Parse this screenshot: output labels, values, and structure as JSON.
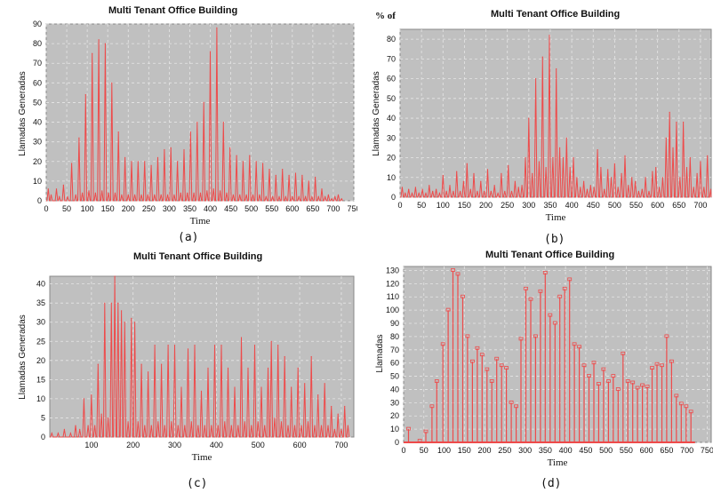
{
  "colors": {
    "plot_bg": "#c0c0c0",
    "grid": "#e6e6e6",
    "line": "#ee4a4a"
  },
  "chart_data": [
    {
      "type": "line",
      "title": "Multi Tenant Office Building",
      "caption": "(a)",
      "xlabel": "Time",
      "ylabel": "Llamadas Generadas",
      "xlim": [
        0,
        750
      ],
      "ylim": [
        0,
        90
      ],
      "xticks": [
        0,
        50,
        100,
        150,
        200,
        250,
        300,
        350,
        400,
        450,
        500,
        550,
        600,
        650,
        700,
        750
      ],
      "yticks": [
        0,
        10,
        20,
        30,
        40,
        50,
        60,
        70,
        80,
        90
      ],
      "peaks": [
        [
          5,
          6
        ],
        [
          12,
          3
        ],
        [
          25,
          6
        ],
        [
          32,
          2
        ],
        [
          42,
          8
        ],
        [
          52,
          2
        ],
        [
          62,
          19
        ],
        [
          72,
          3
        ],
        [
          80,
          32
        ],
        [
          88,
          4
        ],
        [
          96,
          54
        ],
        [
          104,
          5
        ],
        [
          112,
          75
        ],
        [
          120,
          4
        ],
        [
          128,
          82
        ],
        [
          136,
          5
        ],
        [
          144,
          80
        ],
        [
          152,
          4
        ],
        [
          160,
          60
        ],
        [
          168,
          4
        ],
        [
          176,
          35
        ],
        [
          184,
          3
        ],
        [
          192,
          22
        ],
        [
          200,
          3
        ],
        [
          208,
          20
        ],
        [
          216,
          3
        ],
        [
          224,
          20
        ],
        [
          232,
          3
        ],
        [
          240,
          20
        ],
        [
          248,
          3
        ],
        [
          256,
          18
        ],
        [
          264,
          3
        ],
        [
          272,
          22
        ],
        [
          280,
          3
        ],
        [
          288,
          26
        ],
        [
          296,
          3
        ],
        [
          304,
          27
        ],
        [
          312,
          3
        ],
        [
          320,
          20
        ],
        [
          328,
          4
        ],
        [
          336,
          26
        ],
        [
          344,
          4
        ],
        [
          352,
          35
        ],
        [
          360,
          4
        ],
        [
          368,
          40
        ],
        [
          376,
          4
        ],
        [
          384,
          50
        ],
        [
          392,
          5
        ],
        [
          400,
          76
        ],
        [
          408,
          6
        ],
        [
          416,
          88
        ],
        [
          424,
          5
        ],
        [
          432,
          40
        ],
        [
          440,
          4
        ],
        [
          448,
          27
        ],
        [
          456,
          3
        ],
        [
          464,
          23
        ],
        [
          472,
          3
        ],
        [
          480,
          20
        ],
        [
          488,
          3
        ],
        [
          496,
          23
        ],
        [
          504,
          3
        ],
        [
          512,
          20
        ],
        [
          520,
          3
        ],
        [
          528,
          19
        ],
        [
          536,
          2
        ],
        [
          544,
          16
        ],
        [
          552,
          2
        ],
        [
          560,
          13
        ],
        [
          568,
          2
        ],
        [
          576,
          16
        ],
        [
          584,
          2
        ],
        [
          592,
          13
        ],
        [
          600,
          2
        ],
        [
          608,
          14
        ],
        [
          616,
          2
        ],
        [
          624,
          13
        ],
        [
          632,
          2
        ],
        [
          640,
          10
        ],
        [
          648,
          2
        ],
        [
          656,
          12
        ],
        [
          664,
          2
        ],
        [
          672,
          6
        ],
        [
          680,
          2
        ],
        [
          688,
          3
        ],
        [
          696,
          1
        ],
        [
          704,
          2
        ],
        [
          712,
          3
        ],
        [
          720,
          1
        ]
      ]
    },
    {
      "type": "line",
      "title": "Multi Tenant Office Building",
      "corner_label": "% of",
      "caption": "(b)",
      "xlabel": "Time",
      "ylabel": "Llamadas Generadas",
      "xlim": [
        0,
        725
      ],
      "ylim": [
        0,
        85
      ],
      "xticks": [
        0,
        50,
        100,
        150,
        200,
        250,
        300,
        350,
        400,
        450,
        500,
        550,
        600,
        650,
        700
      ],
      "yticks": [
        0,
        10,
        20,
        30,
        40,
        50,
        60,
        70,
        80
      ],
      "peaks": [
        [
          5,
          5
        ],
        [
          12,
          2
        ],
        [
          20,
          4
        ],
        [
          28,
          2
        ],
        [
          36,
          5
        ],
        [
          44,
          2
        ],
        [
          52,
          4
        ],
        [
          60,
          2
        ],
        [
          68,
          6
        ],
        [
          76,
          3
        ],
        [
          84,
          4
        ],
        [
          92,
          2
        ],
        [
          100,
          11
        ],
        [
          108,
          3
        ],
        [
          116,
          6
        ],
        [
          124,
          3
        ],
        [
          132,
          13
        ],
        [
          140,
          3
        ],
        [
          148,
          8
        ],
        [
          156,
          17
        ],
        [
          164,
          4
        ],
        [
          172,
          12
        ],
        [
          180,
          3
        ],
        [
          188,
          8
        ],
        [
          196,
          3
        ],
        [
          204,
          14
        ],
        [
          212,
          3
        ],
        [
          220,
          6
        ],
        [
          228,
          2
        ],
        [
          236,
          12
        ],
        [
          244,
          3
        ],
        [
          252,
          16
        ],
        [
          260,
          3
        ],
        [
          268,
          8
        ],
        [
          276,
          5
        ],
        [
          284,
          6
        ],
        [
          292,
          20
        ],
        [
          300,
          40
        ],
        [
          308,
          12
        ],
        [
          316,
          60
        ],
        [
          324,
          18
        ],
        [
          332,
          71
        ],
        [
          340,
          15
        ],
        [
          348,
          82
        ],
        [
          356,
          20
        ],
        [
          364,
          65
        ],
        [
          372,
          25
        ],
        [
          380,
          20
        ],
        [
          388,
          30
        ],
        [
          396,
          15
        ],
        [
          404,
          20
        ],
        [
          412,
          10
        ],
        [
          420,
          5
        ],
        [
          428,
          8
        ],
        [
          436,
          4
        ],
        [
          444,
          6
        ],
        [
          452,
          5
        ],
        [
          460,
          24
        ],
        [
          468,
          15
        ],
        [
          476,
          4
        ],
        [
          484,
          14
        ],
        [
          492,
          10
        ],
        [
          500,
          17
        ],
        [
          508,
          5
        ],
        [
          516,
          12
        ],
        [
          524,
          21
        ],
        [
          532,
          6
        ],
        [
          540,
          10
        ],
        [
          548,
          8
        ],
        [
          556,
          3
        ],
        [
          564,
          4
        ],
        [
          572,
          10
        ],
        [
          580,
          3
        ],
        [
          588,
          13
        ],
        [
          596,
          15
        ],
        [
          604,
          5
        ],
        [
          612,
          10
        ],
        [
          620,
          30
        ],
        [
          628,
          43
        ],
        [
          636,
          25
        ],
        [
          644,
          38
        ],
        [
          652,
          10
        ],
        [
          660,
          38
        ],
        [
          668,
          15
        ],
        [
          676,
          20
        ],
        [
          684,
          5
        ],
        [
          692,
          12
        ],
        [
          700,
          18
        ],
        [
          708,
          5
        ],
        [
          716,
          21
        ],
        [
          724,
          4
        ]
      ]
    },
    {
      "type": "line",
      "title": "Multi Tenant Office Building",
      "caption": "(c)",
      "xlabel": "Time",
      "ylabel": "Llamadas Generadas",
      "xlim": [
        0,
        730
      ],
      "ylim": [
        0,
        42
      ],
      "xticks": [
        100,
        200,
        300,
        400,
        500,
        600,
        700
      ],
      "yticks": [
        0,
        5,
        10,
        15,
        20,
        25,
        30,
        35,
        40
      ],
      "peaks": [
        [
          5,
          1
        ],
        [
          20,
          1
        ],
        [
          35,
          2
        ],
        [
          50,
          1
        ],
        [
          62,
          3
        ],
        [
          72,
          2
        ],
        [
          82,
          10
        ],
        [
          92,
          3
        ],
        [
          100,
          11
        ],
        [
          108,
          3
        ],
        [
          116,
          19
        ],
        [
          124,
          6
        ],
        [
          132,
          35
        ],
        [
          140,
          5
        ],
        [
          148,
          35
        ],
        [
          156,
          42
        ],
        [
          164,
          35
        ],
        [
          172,
          33
        ],
        [
          180,
          30
        ],
        [
          188,
          4
        ],
        [
          196,
          31
        ],
        [
          204,
          30
        ],
        [
          212,
          4
        ],
        [
          220,
          19
        ],
        [
          228,
          3
        ],
        [
          236,
          17
        ],
        [
          244,
          3
        ],
        [
          252,
          24
        ],
        [
          260,
          4
        ],
        [
          268,
          19
        ],
        [
          276,
          3
        ],
        [
          284,
          24
        ],
        [
          292,
          4
        ],
        [
          300,
          24
        ],
        [
          308,
          3
        ],
        [
          316,
          13
        ],
        [
          324,
          3
        ],
        [
          332,
          23
        ],
        [
          340,
          4
        ],
        [
          348,
          24
        ],
        [
          356,
          3
        ],
        [
          364,
          12
        ],
        [
          372,
          3
        ],
        [
          380,
          18
        ],
        [
          388,
          3
        ],
        [
          396,
          24
        ],
        [
          404,
          3
        ],
        [
          412,
          24
        ],
        [
          420,
          4
        ],
        [
          428,
          18
        ],
        [
          436,
          3
        ],
        [
          444,
          13
        ],
        [
          452,
          3
        ],
        [
          460,
          26
        ],
        [
          468,
          4
        ],
        [
          476,
          18
        ],
        [
          484,
          3
        ],
        [
          492,
          24
        ],
        [
          500,
          4
        ],
        [
          508,
          13
        ],
        [
          516,
          3
        ],
        [
          524,
          18
        ],
        [
          532,
          25
        ],
        [
          540,
          5
        ],
        [
          548,
          24
        ],
        [
          556,
          4
        ],
        [
          564,
          21
        ],
        [
          572,
          3
        ],
        [
          580,
          13
        ],
        [
          588,
          3
        ],
        [
          596,
          18
        ],
        [
          604,
          3
        ],
        [
          612,
          14
        ],
        [
          620,
          4
        ],
        [
          628,
          21
        ],
        [
          636,
          3
        ],
        [
          644,
          11
        ],
        [
          652,
          3
        ],
        [
          660,
          14
        ],
        [
          668,
          3
        ],
        [
          676,
          8
        ],
        [
          684,
          2
        ],
        [
          692,
          6
        ],
        [
          700,
          2
        ],
        [
          708,
          8
        ],
        [
          716,
          3
        ]
      ]
    },
    {
      "type": "bar",
      "title": "Multi Tenant Office Building",
      "caption": "(d)",
      "xlabel": "Time",
      "ylabel": "Llamadas",
      "xlim": [
        0,
        760
      ],
      "ylim": [
        0,
        133
      ],
      "xticks": [
        0,
        50,
        100,
        150,
        200,
        250,
        300,
        350,
        400,
        450,
        500,
        550,
        600,
        650,
        700,
        750
      ],
      "yticks": [
        0,
        10,
        20,
        30,
        40,
        50,
        60,
        70,
        80,
        90,
        100,
        110,
        120,
        130
      ],
      "bars": [
        [
          12,
          10
        ],
        [
          40,
          1
        ],
        [
          55,
          8
        ],
        [
          70,
          27
        ],
        [
          82,
          46
        ],
        [
          97,
          74
        ],
        [
          110,
          100
        ],
        [
          122,
          130
        ],
        [
          134,
          127
        ],
        [
          146,
          110
        ],
        [
          158,
          80
        ],
        [
          170,
          61
        ],
        [
          182,
          71
        ],
        [
          194,
          66
        ],
        [
          206,
          55
        ],
        [
          218,
          46
        ],
        [
          230,
          63
        ],
        [
          242,
          58
        ],
        [
          254,
          56
        ],
        [
          266,
          30
        ],
        [
          278,
          27
        ],
        [
          290,
          78
        ],
        [
          302,
          116
        ],
        [
          314,
          108
        ],
        [
          326,
          80
        ],
        [
          338,
          114
        ],
        [
          350,
          128
        ],
        [
          362,
          96
        ],
        [
          374,
          90
        ],
        [
          386,
          110
        ],
        [
          398,
          116
        ],
        [
          410,
          123
        ],
        [
          422,
          74
        ],
        [
          434,
          72
        ],
        [
          446,
          58
        ],
        [
          458,
          50
        ],
        [
          470,
          60
        ],
        [
          482,
          44
        ],
        [
          494,
          55
        ],
        [
          506,
          46
        ],
        [
          518,
          50
        ],
        [
          530,
          40
        ],
        [
          542,
          67
        ],
        [
          554,
          46
        ],
        [
          566,
          45
        ],
        [
          578,
          41
        ],
        [
          590,
          43
        ],
        [
          602,
          42
        ],
        [
          614,
          56
        ],
        [
          626,
          59
        ],
        [
          638,
          58
        ],
        [
          650,
          80
        ],
        [
          662,
          61
        ],
        [
          674,
          35
        ],
        [
          686,
          29
        ],
        [
          698,
          27
        ],
        [
          710,
          23
        ]
      ],
      "bar_labels": [
        [
          410,
          123
        ],
        [
          350,
          128
        ],
        [
          122,
          130
        ]
      ]
    }
  ]
}
